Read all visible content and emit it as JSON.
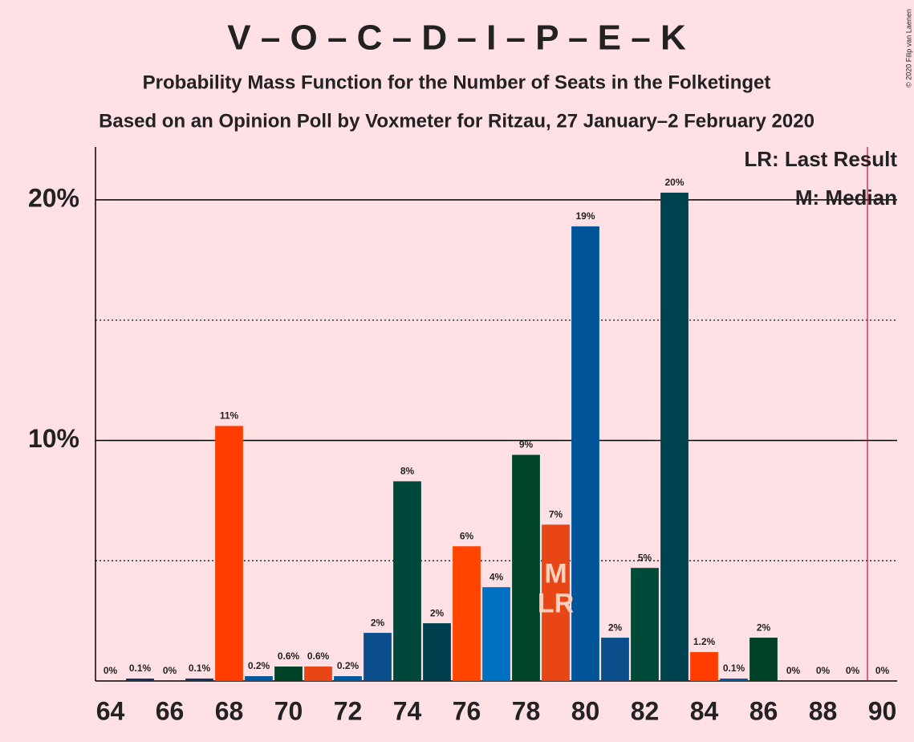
{
  "chart_data": {
    "type": "bar",
    "title": "V – O – C – D – I – P – E – K",
    "subtitle": "Probability Mass Function for the Number of Seats in the Folketinget",
    "subtitle2": "Based on an Opinion Poll by Voxmeter for Ritzau, 27 January–2 February 2020",
    "copyright": "© 2020 Filip van Laenen",
    "legend": [
      "LR: Last Result",
      "M: Median"
    ],
    "x": [
      64,
      65,
      66,
      67,
      68,
      69,
      70,
      71,
      72,
      73,
      74,
      75,
      76,
      77,
      78,
      79,
      80,
      81,
      82,
      83,
      84,
      85,
      86,
      87,
      88,
      89,
      90
    ],
    "series": [
      {
        "values": [
          0,
          0.1,
          0,
          0.1,
          10.6,
          0.2,
          0.6,
          0.6,
          0.2,
          2.0,
          8.3,
          2.4,
          5.6,
          3.9,
          9.4,
          6.5,
          18.9,
          1.8,
          4.7,
          20.3,
          1.2,
          0.1,
          1.8,
          0,
          0,
          0,
          0
        ],
        "value_labels": [
          "0%",
          "0.1%",
          "0%",
          "0.1%",
          "11%",
          "0.2%",
          "0.6%",
          "0.6%",
          "0.2%",
          "2%",
          "8%",
          "2%",
          "6%",
          "4%",
          "9%",
          "7%",
          "19%",
          "2%",
          "5%",
          "20%",
          "1.2%",
          "0.1%",
          "2%",
          "0%",
          "0%",
          "0%",
          "0%"
        ],
        "colors": [
          "#0a4f8c",
          "#12325e",
          "#0a4f8c",
          "#12325e",
          "#ff3d00",
          "#005a9b",
          "#004225",
          "#e84715",
          "#005a9b",
          "#0a4f8c",
          "#00473b",
          "#003f4d",
          "#ff4500",
          "#0070c0",
          "#00442a",
          "#e84715",
          "#005599",
          "#0a4f8c",
          "#004a3a",
          "#004350",
          "#ff3d00",
          "#005a9b",
          "#004225",
          "#004225",
          "#004225",
          "#004225",
          "#004225"
        ]
      }
    ],
    "annotations": [
      {
        "text": "M",
        "x": 79
      },
      {
        "text": "LR",
        "x": 79
      }
    ],
    "majority_x": 89.5,
    "xlim": [
      63.5,
      90.5
    ],
    "xticks": [
      64,
      66,
      68,
      70,
      72,
      74,
      76,
      78,
      80,
      82,
      84,
      86,
      88,
      90
    ],
    "ylim": [
      0,
      22.2
    ],
    "yticks": [
      {
        "value": 10,
        "label": "10%"
      },
      {
        "value": 20,
        "label": "20%"
      }
    ],
    "minor_yticks": [
      5,
      15
    ]
  }
}
